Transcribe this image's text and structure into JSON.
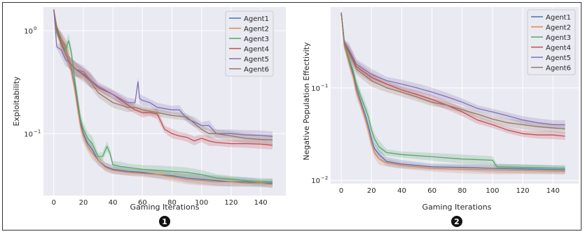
{
  "chart_data": [
    {
      "type": "line",
      "panel_marker": "1",
      "xlabel": "Gaming Iterations",
      "ylabel": "Exploitability",
      "yscale": "log",
      "xlim": [
        -7,
        157
      ],
      "ylim": [
        0.025,
        1.7
      ],
      "xticks": [
        0,
        20,
        40,
        60,
        80,
        100,
        120,
        140
      ],
      "yticks": [
        {
          "value": 1,
          "base": "10",
          "exp": "0"
        },
        {
          "value": 0.1,
          "base": "10",
          "exp": "−1"
        }
      ],
      "grid": true,
      "legend_position": "top-right",
      "colors": [
        "#4c72b0",
        "#dd8452",
        "#55a868",
        "#c44e52",
        "#8172b3",
        "#937860"
      ],
      "series": [
        {
          "name": "Agent1",
          "color": "#4c72b0",
          "x": [
            0,
            2,
            5,
            8,
            10,
            12,
            14,
            16,
            18,
            20,
            23,
            26,
            30,
            35,
            40,
            50,
            60,
            70,
            80,
            90,
            100,
            110,
            120,
            130,
            140,
            148
          ],
          "y": [
            1.6,
            1.0,
            0.85,
            0.7,
            0.55,
            0.42,
            0.3,
            0.2,
            0.13,
            0.1,
            0.08,
            0.07,
            0.055,
            0.048,
            0.045,
            0.043,
            0.042,
            0.04,
            0.039,
            0.037,
            0.036,
            0.035,
            0.034,
            0.034,
            0.033,
            0.033
          ]
        },
        {
          "name": "Agent2",
          "color": "#dd8452",
          "x": [
            0,
            2,
            5,
            8,
            10,
            12,
            14,
            16,
            18,
            20,
            23,
            26,
            30,
            35,
            40,
            50,
            60,
            70,
            80,
            90,
            100,
            110,
            120,
            130,
            140,
            148
          ],
          "y": [
            1.6,
            0.95,
            0.85,
            0.72,
            0.55,
            0.4,
            0.28,
            0.18,
            0.12,
            0.095,
            0.075,
            0.065,
            0.055,
            0.047,
            0.044,
            0.042,
            0.041,
            0.04,
            0.038,
            0.036,
            0.035,
            0.034,
            0.034,
            0.033,
            0.033,
            0.032
          ]
        },
        {
          "name": "Agent3",
          "color": "#55a868",
          "x": [
            0,
            2,
            5,
            8,
            10,
            12,
            14,
            16,
            18,
            20,
            23,
            26,
            30,
            33,
            36,
            38,
            40,
            45,
            50,
            60,
            70,
            80,
            90,
            100,
            110,
            120,
            130,
            140,
            148
          ],
          "y": [
            1.6,
            0.95,
            0.75,
            0.65,
            0.8,
            0.6,
            0.35,
            0.22,
            0.14,
            0.11,
            0.09,
            0.08,
            0.06,
            0.06,
            0.075,
            0.065,
            0.05,
            0.048,
            0.047,
            0.045,
            0.044,
            0.043,
            0.042,
            0.04,
            0.037,
            0.036,
            0.035,
            0.034,
            0.034
          ]
        },
        {
          "name": "Agent4",
          "color": "#c44e52",
          "x": [
            0,
            2,
            5,
            8,
            10,
            15,
            20,
            25,
            30,
            40,
            50,
            55,
            60,
            65,
            70,
            75,
            80,
            85,
            90,
            95,
            100,
            105,
            110,
            120,
            130,
            140,
            148
          ],
          "y": [
            1.6,
            1.05,
            0.75,
            0.6,
            0.5,
            0.42,
            0.38,
            0.33,
            0.28,
            0.24,
            0.19,
            0.17,
            0.16,
            0.16,
            0.155,
            0.11,
            0.1,
            0.095,
            0.092,
            0.085,
            0.09,
            0.085,
            0.082,
            0.08,
            0.08,
            0.079,
            0.077
          ]
        },
        {
          "name": "Agent5",
          "color": "#8172b3",
          "x": [
            0,
            2,
            5,
            8,
            10,
            15,
            20,
            25,
            30,
            40,
            50,
            55,
            57,
            58,
            60,
            65,
            70,
            80,
            85,
            90,
            95,
            100,
            105,
            110,
            120,
            130,
            140,
            148
          ],
          "y": [
            1.6,
            0.7,
            0.65,
            0.52,
            0.5,
            0.42,
            0.4,
            0.33,
            0.29,
            0.24,
            0.2,
            0.2,
            0.32,
            0.22,
            0.21,
            0.2,
            0.18,
            0.17,
            0.17,
            0.14,
            0.13,
            0.12,
            0.12,
            0.1,
            0.1,
            0.097,
            0.096,
            0.094
          ]
        },
        {
          "name": "Agent6",
          "color": "#937860",
          "x": [
            0,
            2,
            5,
            8,
            10,
            15,
            20,
            25,
            30,
            40,
            50,
            55,
            60,
            70,
            80,
            90,
            100,
            105,
            110,
            120,
            130,
            140,
            148
          ],
          "y": [
            1.6,
            1.1,
            0.8,
            0.6,
            0.5,
            0.42,
            0.37,
            0.32,
            0.25,
            0.2,
            0.18,
            0.18,
            0.17,
            0.16,
            0.15,
            0.145,
            0.11,
            0.1,
            0.1,
            0.095,
            0.09,
            0.088,
            0.087
          ]
        }
      ]
    },
    {
      "type": "line",
      "panel_marker": "2",
      "xlabel": "Gaming Iterations",
      "ylabel": "Negative Population Effectivity",
      "yscale": "log",
      "xlim": [
        -7,
        157
      ],
      "ylim": [
        0.0092,
        0.75
      ],
      "xticks": [
        0,
        20,
        40,
        60,
        80,
        100,
        120,
        140
      ],
      "yticks": [
        {
          "value": 0.1,
          "base": "10",
          "exp": "−1"
        },
        {
          "value": 0.01,
          "base": "10",
          "exp": "−2"
        }
      ],
      "grid": true,
      "legend_position": "top-right",
      "colors": [
        "#4c72b0",
        "#dd8452",
        "#55a868",
        "#c44e52",
        "#8172b3",
        "#937860"
      ],
      "series": [
        {
          "name": "Agent1",
          "color": "#4c72b0",
          "x": [
            0,
            2,
            5,
            8,
            10,
            13,
            16,
            18,
            20,
            22,
            25,
            30,
            40,
            60,
            80,
            100,
            120,
            148
          ],
          "y": [
            0.65,
            0.3,
            0.2,
            0.14,
            0.1,
            0.07,
            0.05,
            0.038,
            0.028,
            0.022,
            0.019,
            0.016,
            0.015,
            0.014,
            0.0138,
            0.0135,
            0.0133,
            0.013
          ]
        },
        {
          "name": "Agent2",
          "color": "#dd8452",
          "x": [
            0,
            2,
            5,
            8,
            10,
            13,
            16,
            18,
            20,
            22,
            25,
            30,
            40,
            60,
            80,
            100,
            120,
            148
          ],
          "y": [
            0.65,
            0.28,
            0.19,
            0.13,
            0.09,
            0.065,
            0.045,
            0.034,
            0.025,
            0.02,
            0.017,
            0.0155,
            0.0145,
            0.0135,
            0.0132,
            0.013,
            0.0128,
            0.0125
          ]
        },
        {
          "name": "Agent3",
          "color": "#55a868",
          "x": [
            0,
            2,
            5,
            8,
            10,
            13,
            16,
            18,
            20,
            22,
            25,
            30,
            40,
            60,
            80,
            100,
            103,
            120,
            148
          ],
          "y": [
            0.65,
            0.3,
            0.21,
            0.15,
            0.11,
            0.08,
            0.06,
            0.048,
            0.035,
            0.028,
            0.023,
            0.02,
            0.019,
            0.018,
            0.017,
            0.0165,
            0.014,
            0.0138,
            0.0135
          ]
        },
        {
          "name": "Agent4",
          "color": "#c44e52",
          "x": [
            0,
            2,
            5,
            8,
            10,
            20,
            30,
            40,
            50,
            60,
            70,
            80,
            90,
            100,
            110,
            120,
            130,
            140,
            148
          ],
          "y": [
            0.65,
            0.32,
            0.25,
            0.2,
            0.17,
            0.13,
            0.11,
            0.095,
            0.085,
            0.075,
            0.065,
            0.055,
            0.045,
            0.04,
            0.035,
            0.032,
            0.031,
            0.031,
            0.03
          ]
        },
        {
          "name": "Agent5",
          "color": "#8172b3",
          "x": [
            0,
            2,
            5,
            8,
            10,
            20,
            30,
            40,
            50,
            60,
            70,
            80,
            90,
            100,
            110,
            120,
            130,
            140,
            148
          ],
          "y": [
            0.65,
            0.32,
            0.26,
            0.21,
            0.18,
            0.14,
            0.12,
            0.11,
            0.1,
            0.09,
            0.08,
            0.07,
            0.06,
            0.055,
            0.05,
            0.045,
            0.042,
            0.04,
            0.04
          ]
        },
        {
          "name": "Agent6",
          "color": "#937860",
          "x": [
            0,
            2,
            5,
            8,
            10,
            20,
            30,
            40,
            50,
            60,
            70,
            80,
            90,
            100,
            110,
            120,
            130,
            140,
            148
          ],
          "y": [
            0.65,
            0.3,
            0.24,
            0.19,
            0.16,
            0.12,
            0.1,
            0.09,
            0.08,
            0.07,
            0.065,
            0.058,
            0.052,
            0.046,
            0.042,
            0.04,
            0.038,
            0.037,
            0.036
          ]
        }
      ]
    }
  ]
}
